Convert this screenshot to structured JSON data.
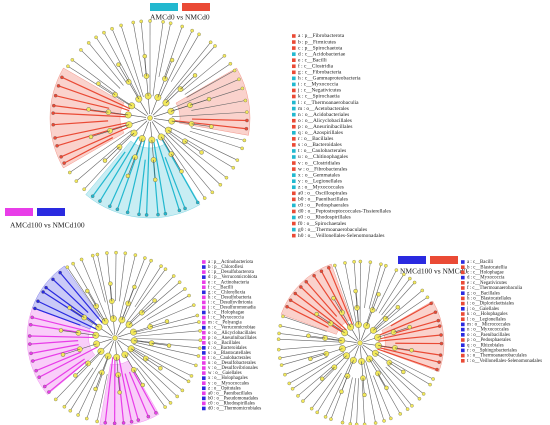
{
  "panels": [
    {
      "title": "AMCd0 vs NMCd0",
      "legend_colors": [
        "#22b8cf",
        "#ea4a35"
      ],
      "key": [
        {
          "label": "a : p__Fibrobacterota",
          "color": "#ea4a35"
        },
        {
          "label": "b : p__Firmicutes",
          "color": "#ea4a35"
        },
        {
          "label": "c : p__Spirochaetota",
          "color": "#ea4a35"
        },
        {
          "label": "d : c__Acidobacteriae",
          "color": "#22b8cf"
        },
        {
          "label": "e : c__Bacilli",
          "color": "#ea4a35"
        },
        {
          "label": "f : c__Clostridia",
          "color": "#ea4a35"
        },
        {
          "label": "g : c__Fibrobacteria",
          "color": "#ea4a35"
        },
        {
          "label": "h : c__Gammaproteobacteria",
          "color": "#22b8cf"
        },
        {
          "label": "i : c__Myxococcia",
          "color": "#22b8cf"
        },
        {
          "label": "j : c__Negativicutes",
          "color": "#ea4a35"
        },
        {
          "label": "k : c__Spirochaetia",
          "color": "#ea4a35"
        },
        {
          "label": "l : c__Thermoanaerobaculia",
          "color": "#22b8cf"
        },
        {
          "label": "m : o__Acetobacterales",
          "color": "#22b8cf"
        },
        {
          "label": "n : o__Acidobacteriales",
          "color": "#22b8cf"
        },
        {
          "label": "o : o__Alicyclobacillales",
          "color": "#ea4a35"
        },
        {
          "label": "p : o__Aneurinibacillales",
          "color": "#ea4a35"
        },
        {
          "label": "q : o__Azospirillales",
          "color": "#22b8cf"
        },
        {
          "label": "r : o__Bacillales",
          "color": "#ea4a35"
        },
        {
          "label": "s : o__Bacteroidales",
          "color": "#ea4a35"
        },
        {
          "label": "t : o__Caulobacterales",
          "color": "#22b8cf"
        },
        {
          "label": "u : o__Chitinophagales",
          "color": "#22b8cf"
        },
        {
          "label": "v : o__Clostridiales",
          "color": "#ea4a35"
        },
        {
          "label": "w : o__Fibrobacterales",
          "color": "#ea4a35"
        },
        {
          "label": "x : o__Gemmatales",
          "color": "#22b8cf"
        },
        {
          "label": "y : o__Legionellales",
          "color": "#22b8cf"
        },
        {
          "label": "z : o__Myxococcales",
          "color": "#22b8cf"
        },
        {
          "label": "a0 : o__Oscillospirales",
          "color": "#ea4a35"
        },
        {
          "label": "b0 : o__Paenibacillales",
          "color": "#ea4a35"
        },
        {
          "label": "c0 : o__Pedosphaerales",
          "color": "#22b8cf"
        },
        {
          "label": "d0 : o__Peptostreptococcales-Tissierellales",
          "color": "#ea4a35"
        },
        {
          "label": "e0 : o__Rhodospirillales",
          "color": "#22b8cf"
        },
        {
          "label": "f0 : o__Spirochaetales",
          "color": "#ea4a35"
        },
        {
          "label": "g0 : o__Thermoanaerobaculales",
          "color": "#22b8cf"
        },
        {
          "label": "h0 : o__Veillonellales-Selenomonadales",
          "color": "#ea4a35"
        }
      ]
    },
    {
      "title": "AMCd100 vs NMCd100",
      "legend_colors": [
        "#e83de8",
        "#2a2ae0"
      ],
      "key": [
        {
          "label": "a : p__Actinobacteriota",
          "color": "#e83de8"
        },
        {
          "label": "b : p__Chloroflexi",
          "color": "#2a2ae0"
        },
        {
          "label": "c : p__Desulfobacterota",
          "color": "#e83de8"
        },
        {
          "label": "d : p__Verrucomicrobiota",
          "color": "#2a2ae0"
        },
        {
          "label": "e : c__Actinobacteria",
          "color": "#e83de8"
        },
        {
          "label": "f : c__Bacilli",
          "color": "#e83de8"
        },
        {
          "label": "g : c__Chloroflexia",
          "color": "#2a2ae0"
        },
        {
          "label": "h : c__Desulfobacteria",
          "color": "#e83de8"
        },
        {
          "label": "i : c__Desulfovibrionia",
          "color": "#e83de8"
        },
        {
          "label": "j : c__Desulfuromonadia",
          "color": "#e83de8"
        },
        {
          "label": "k : c__Holophagae",
          "color": "#2a2ae0"
        },
        {
          "label": "l : c__Myxococcia",
          "color": "#e83de8"
        },
        {
          "label": "m : c__Polyangia",
          "color": "#e83de8"
        },
        {
          "label": "n : c__Verrucomicrobiae",
          "color": "#2a2ae0"
        },
        {
          "label": "o : o__Alicyclobacillales",
          "color": "#e83de8"
        },
        {
          "label": "p : o__Aneurinibacillales",
          "color": "#e83de8"
        },
        {
          "label": "q : o__Bacillales",
          "color": "#e83de8"
        },
        {
          "label": "r : o__Bacteroidales",
          "color": "#2a2ae0"
        },
        {
          "label": "s : o__Blastocatellales",
          "color": "#2a2ae0"
        },
        {
          "label": "t : o__Caulobacterales",
          "color": "#e83de8"
        },
        {
          "label": "u : o__Desulfobacterales",
          "color": "#e83de8"
        },
        {
          "label": "v : o__Desulfovibrionales",
          "color": "#e83de8"
        },
        {
          "label": "w : o__Gaiellales",
          "color": "#e83de8"
        },
        {
          "label": "x : o__Holophagales",
          "color": "#2a2ae0"
        },
        {
          "label": "y : o__Myxococcales",
          "color": "#e83de8"
        },
        {
          "label": "z : o__Opitutales",
          "color": "#2a2ae0"
        },
        {
          "label": "a0 : o__Paenibacillales",
          "color": "#e83de8"
        },
        {
          "label": "b0 : o__Pseudomonadales",
          "color": "#2a2ae0"
        },
        {
          "label": "c0 : o__Rhodospirillales",
          "color": "#e83de8"
        },
        {
          "label": "d0 : o__Thermomicrobiales",
          "color": "#2a2ae0"
        }
      ]
    },
    {
      "title": "NMCd100 vs NMCd0",
      "legend_colors": [
        "#2a2ae0",
        "#ea4a35"
      ],
      "key": [
        {
          "label": "a : c__Bacilli",
          "color": "#2a2ae0"
        },
        {
          "label": "b : c__Blastocatellia",
          "color": "#ea4a35"
        },
        {
          "label": "c : c__Holophagae",
          "color": "#ea4a35"
        },
        {
          "label": "d : c__Myxococcia",
          "color": "#2a2ae0"
        },
        {
          "label": "e : c__Negativicutes",
          "color": "#ea4a35"
        },
        {
          "label": "f : c__Thermoanaerobaculia",
          "color": "#ea4a35"
        },
        {
          "label": "g : o__Bacillales",
          "color": "#2a2ae0"
        },
        {
          "label": "h : o__Blastocatellales",
          "color": "#ea4a35"
        },
        {
          "label": "i : o__Diplorickettsiales",
          "color": "#ea4a35"
        },
        {
          "label": "j : o__Gaiellales",
          "color": "#2a2ae0"
        },
        {
          "label": "k : o__Holophagales",
          "color": "#ea4a35"
        },
        {
          "label": "l : o__Legionellales",
          "color": "#ea4a35"
        },
        {
          "label": "m : o__Micrococcales",
          "color": "#2a2ae0"
        },
        {
          "label": "n : o__Myxococcales",
          "color": "#2a2ae0"
        },
        {
          "label": "o : o__Paenibacillales",
          "color": "#2a2ae0"
        },
        {
          "label": "p : o__Pedosphaerales",
          "color": "#ea4a35"
        },
        {
          "label": "q : o__Rhizobiales",
          "color": "#2a2ae0"
        },
        {
          "label": "r : o__Sphingobacteriales",
          "color": "#2a2ae0"
        },
        {
          "label": "s : o__Thermoanaerobaculales",
          "color": "#ea4a35"
        },
        {
          "label": "t : o__Veillonellales-Selenomonadales",
          "color": "#ea4a35"
        }
      ]
    }
  ]
}
